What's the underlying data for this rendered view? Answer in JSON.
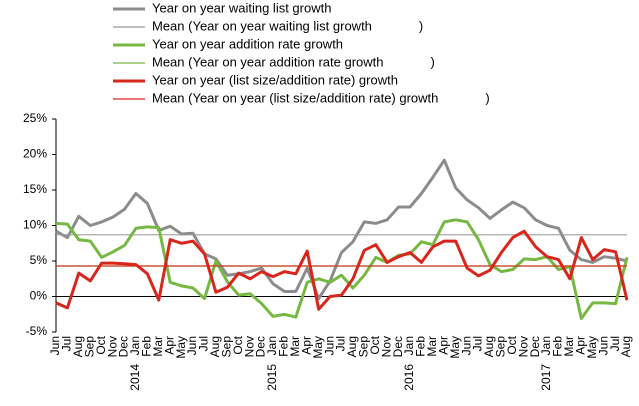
{
  "chart_data": {
    "type": "line",
    "categories": [
      "Jun",
      "Jul",
      "Aug",
      "Sep",
      "Oct",
      "Nov",
      "Dec",
      "Jan",
      "Feb",
      "Mar",
      "Apr",
      "May",
      "Jun",
      "Jul",
      "Aug",
      "Sep",
      "Oct",
      "Nov",
      "Dec",
      "Jan",
      "Feb",
      "Mar",
      "Apr",
      "May",
      "Jun",
      "Jul",
      "Aug",
      "Sep",
      "Oct",
      "Nov",
      "Dec",
      "Jan",
      "Feb",
      "Mar",
      "Apr",
      "May",
      "Jun",
      "Jul",
      "Aug",
      "Sep",
      "Oct",
      "Nov",
      "Dec",
      "Jan",
      "Feb",
      "Mar",
      "Apr",
      "May",
      "Jun",
      "Jul",
      "Aug"
    ],
    "years": [
      "2014",
      "2015",
      "2016",
      "2017"
    ],
    "ylim": [
      -5,
      25
    ],
    "yticks": [
      {
        "value": -5,
        "label": "-5%"
      },
      {
        "value": 0,
        "label": "0%"
      },
      {
        "value": 5,
        "label": "5%"
      },
      {
        "value": 10,
        "label": "10%"
      },
      {
        "value": 15,
        "label": "15%"
      },
      {
        "value": 20,
        "label": "20%"
      },
      {
        "value": 25,
        "label": "25%"
      }
    ],
    "series": [
      {
        "name": "Year on year waiting list growth",
        "color": "#8c8c8c",
        "values": [
          9.2,
          8.3,
          11.3,
          10,
          10.5,
          11.2,
          12.3,
          14.5,
          13.1,
          9.3,
          9.9,
          8.8,
          8.9,
          6,
          5.3,
          3,
          3.2,
          3.5,
          4,
          1.8,
          0.7,
          0.7,
          4,
          -0.3,
          2.2,
          6.2,
          7.7,
          10.5,
          10.3,
          10.8,
          12.6,
          12.6,
          14.5,
          16.8,
          19.2,
          15.3,
          13.6,
          12.5,
          11,
          12.2,
          13.3,
          12.5,
          10.8,
          10,
          9.6,
          6.5,
          5.2,
          4.8,
          5.6,
          5.4,
          5
        ]
      },
      {
        "name": "Mean (Year on year waiting list growth             )",
        "color": "#999999",
        "mean": 8.7
      },
      {
        "name": "Year on year addition rate growth",
        "color": "#77b843",
        "values": [
          10.3,
          10.2,
          8,
          7.8,
          5.5,
          6.3,
          7.2,
          9.6,
          9.8,
          9.7,
          2,
          1.5,
          1.2,
          -0.3,
          5,
          2.1,
          0.2,
          0.4,
          -1,
          -2.8,
          -2.5,
          -2.9,
          2,
          2.5,
          2,
          3,
          1.2,
          3,
          5.5,
          4.8,
          5.8,
          6,
          7.7,
          7.3,
          10.5,
          10.8,
          10.5,
          8,
          4.5,
          3.5,
          3.8,
          5.3,
          5.2,
          5.6,
          3.8,
          4.2,
          -3.1,
          -0.9,
          -0.9,
          -1,
          5.5
        ]
      },
      {
        "name": "Mean (Year on year addition rate growth             )",
        "color": "#77b843",
        "mean": 4.3
      },
      {
        "name": "Year on year (list size/addition rate) growth",
        "color": "#d9261c",
        "values": [
          -0.9,
          -1.6,
          3.3,
          2.2,
          4.7,
          4.7,
          4.6,
          4.5,
          3.2,
          -0.5,
          8,
          7.5,
          7.8,
          6,
          0.6,
          1.3,
          3.3,
          2.5,
          3.5,
          2.8,
          3.5,
          3.2,
          6.4,
          -1.8,
          0,
          0.2,
          2.5,
          6.5,
          7.3,
          4.8,
          5.6,
          6.2,
          4.8,
          7,
          7.8,
          7.8,
          4,
          2.9,
          3.7,
          6.2,
          8.3,
          9.2,
          7,
          5.6,
          5.2,
          2.5,
          8.3,
          5.2,
          6.6,
          6.3,
          -0.5
        ]
      },
      {
        "name": "Mean (Year on year (list size/addition rate) growth             )",
        "color": "#d9261c",
        "mean": 4.3
      }
    ]
  }
}
